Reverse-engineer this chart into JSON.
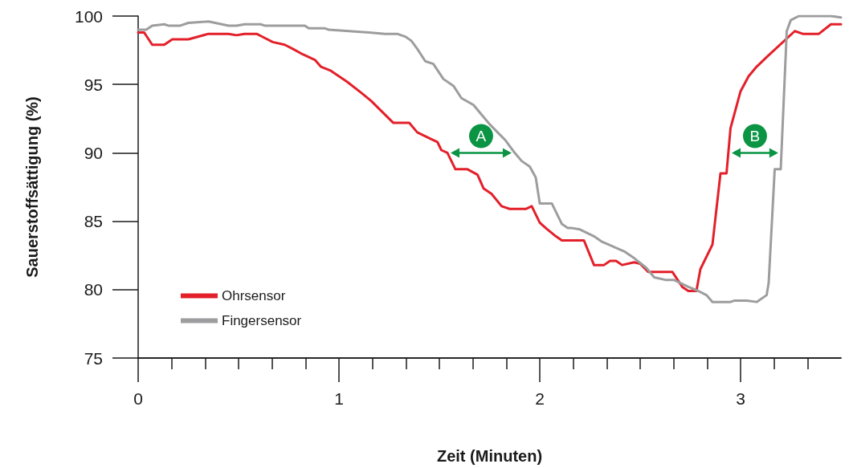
{
  "chart_data": {
    "type": "line",
    "xlabel": "Zeit (Minuten)",
    "ylabel": "Sauerstoffsättigung (%)",
    "xlim": [
      0,
      3.5
    ],
    "ylim": [
      75,
      100
    ],
    "yticks": [
      75,
      80,
      85,
      90,
      95,
      100
    ],
    "xticks": [
      0,
      {
        "value": 0.167,
        "label": null
      },
      {
        "value": 0.333,
        "label": null
      },
      {
        "value": 0.5,
        "label": null
      },
      {
        "value": 0.667,
        "label": null
      },
      {
        "value": 0.833,
        "label": null
      },
      1,
      {
        "value": 1.167,
        "label": null
      },
      {
        "value": 1.333,
        "label": null
      },
      {
        "value": 1.5,
        "label": null
      },
      {
        "value": 1.667,
        "label": null
      },
      {
        "value": 1.833,
        "label": null
      },
      2,
      {
        "value": 2.167,
        "label": null
      },
      {
        "value": 2.333,
        "label": null
      },
      {
        "value": 2.5,
        "label": null
      },
      {
        "value": 2.667,
        "label": null
      },
      {
        "value": 2.833,
        "label": null
      },
      3,
      {
        "value": 3.167,
        "label": null
      },
      {
        "value": 3.333,
        "label": null
      }
    ],
    "grid": false,
    "legend": "bottom left",
    "marker": "none",
    "line_style": "solid",
    "annotations": [
      {
        "text": "A",
        "x": 1.54,
        "y": 90
      },
      {
        "text": "B",
        "x": 2.94,
        "y": 90
      }
    ],
    "series": [
      {
        "name": "Ohrsensor",
        "color": "#e3202a",
        "x": [
          0,
          0.03,
          0.07,
          0.13,
          0.17,
          0.25,
          0.35,
          0.45,
          0.49,
          0.53,
          0.59,
          0.63,
          0.67,
          0.73,
          0.77,
          0.82,
          0.88,
          0.91,
          0.96,
          1.04,
          1.11,
          1.16,
          1.27,
          1.35,
          1.39,
          1.46,
          1.49,
          1.51,
          1.54,
          1.58,
          1.64,
          1.69,
          1.72,
          1.76,
          1.81,
          1.85,
          1.93,
          1.96,
          2.0,
          2.03,
          2.08,
          2.11,
          2.22,
          2.27,
          2.32,
          2.35,
          2.38,
          2.41,
          2.47,
          2.5,
          2.54,
          2.56,
          2.66,
          2.71,
          2.74,
          2.78,
          2.8,
          2.86,
          2.9,
          2.93,
          2.95,
          3.0,
          3.04,
          3.08,
          3.13,
          3.27,
          3.31,
          3.39,
          3.45,
          3.5
        ],
        "values": [
          98.8,
          98.8,
          97.9,
          97.9,
          98.3,
          98.3,
          98.7,
          98.7,
          98.6,
          98.7,
          98.7,
          98.4,
          98.1,
          97.9,
          97.6,
          97.2,
          96.8,
          96.3,
          96.0,
          95.2,
          94.4,
          93.8,
          92.2,
          92.2,
          91.5,
          91.0,
          90.8,
          90.2,
          90.0,
          88.8,
          88.8,
          88.4,
          87.4,
          87.0,
          86.1,
          85.9,
          85.9,
          86.1,
          84.9,
          84.5,
          83.9,
          83.6,
          83.6,
          81.8,
          81.8,
          82.1,
          82.1,
          81.8,
          82.0,
          81.9,
          81.3,
          81.3,
          81.3,
          80.2,
          79.9,
          79.9,
          81.5,
          83.3,
          88.5,
          88.5,
          91.8,
          94.5,
          95.6,
          96.3,
          97.0,
          98.9,
          98.7,
          98.7,
          99.4,
          99.4
        ]
      },
      {
        "name": "Fingersensor",
        "color": "#9d9d9f",
        "x": [
          0,
          0.04,
          0.07,
          0.13,
          0.15,
          0.21,
          0.25,
          0.35,
          0.45,
          0.49,
          0.53,
          0.61,
          0.63,
          0.83,
          0.85,
          0.93,
          0.95,
          1.05,
          1.15,
          1.23,
          1.29,
          1.33,
          1.36,
          1.39,
          1.43,
          1.47,
          1.52,
          1.57,
          1.61,
          1.67,
          1.71,
          1.75,
          1.79,
          1.83,
          1.87,
          1.91,
          1.95,
          1.98,
          2.0,
          2.06,
          2.1,
          2.11,
          2.14,
          2.16,
          2.2,
          2.27,
          2.31,
          2.42,
          2.47,
          2.53,
          2.57,
          2.63,
          2.67,
          2.74,
          2.79,
          2.83,
          2.86,
          2.95,
          2.97,
          3.03,
          3.08,
          3.13,
          3.14,
          3.17,
          3.2,
          3.23,
          3.25,
          3.29,
          3.45,
          3.5
        ],
        "values": [
          99.0,
          99.0,
          99.3,
          99.4,
          99.3,
          99.3,
          99.5,
          99.6,
          99.3,
          99.3,
          99.4,
          99.4,
          99.3,
          99.3,
          99.1,
          99.1,
          99.0,
          98.9,
          98.8,
          98.7,
          98.7,
          98.5,
          98.2,
          97.6,
          96.7,
          96.5,
          95.4,
          94.9,
          94.0,
          93.5,
          92.8,
          92.1,
          91.5,
          90.9,
          90.1,
          89.4,
          89.0,
          88.2,
          86.3,
          86.3,
          85.1,
          84.8,
          84.5,
          84.5,
          84.4,
          83.9,
          83.5,
          82.8,
          82.3,
          81.6,
          80.9,
          80.7,
          80.7,
          80.2,
          79.9,
          79.6,
          79.1,
          79.1,
          79.2,
          79.2,
          79.1,
          79.6,
          80.5,
          88.8,
          88.8,
          98.9,
          99.7,
          100,
          100,
          99.9
        ]
      }
    ]
  }
}
